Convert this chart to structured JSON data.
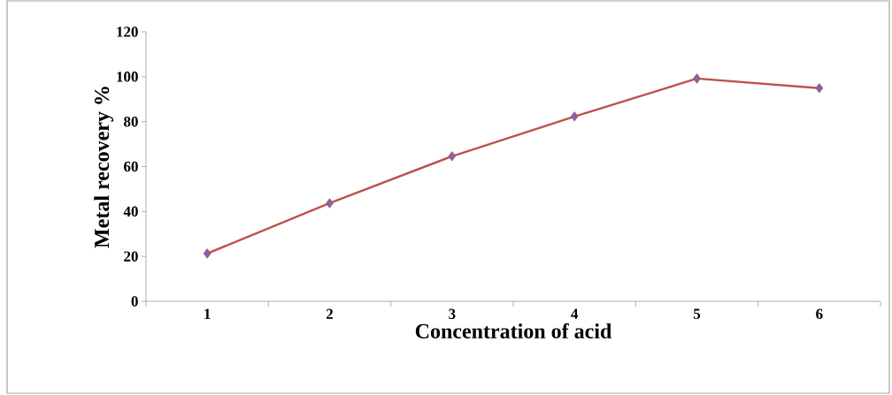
{
  "chart_data": {
    "type": "line",
    "xlabel": "Concentration  of acid",
    "ylabel": "Metal recovery %",
    "categories": [
      "1",
      "2",
      "3",
      "4",
      "5",
      "6"
    ],
    "series": [
      {
        "color": "#c0504d",
        "values": [
          21.3,
          43.7,
          64.6,
          82.3,
          99.2,
          94.9
        ]
      }
    ],
    "ylim": [
      0,
      120
    ],
    "yticks": [
      0,
      20,
      40,
      60,
      80,
      100,
      120
    ],
    "marker": "diamond",
    "line_style": "solid",
    "grid": false
  }
}
